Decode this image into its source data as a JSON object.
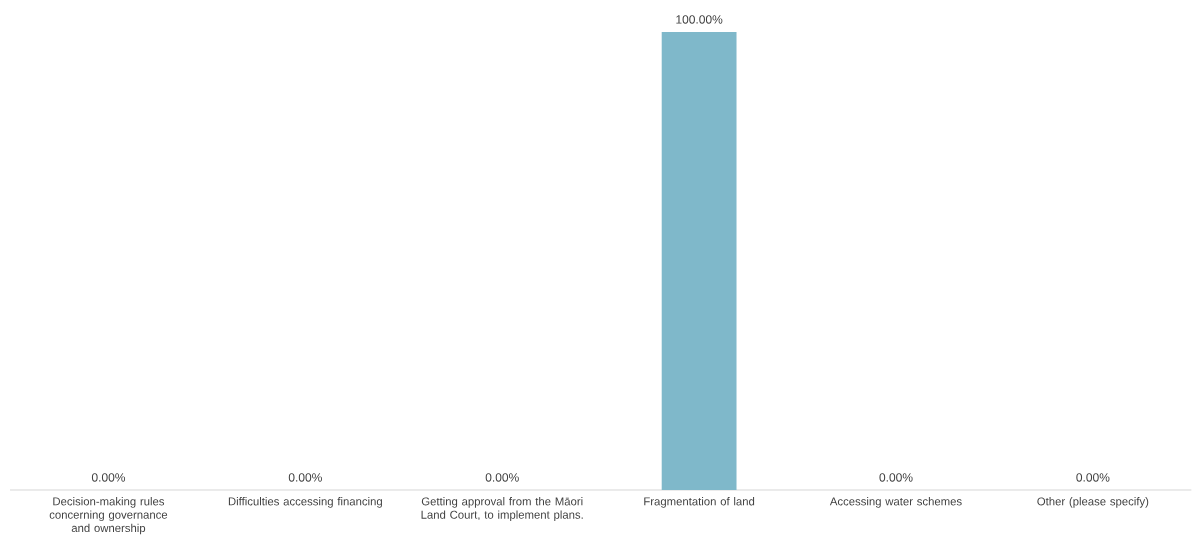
{
  "chart_data": {
    "type": "bar",
    "categories": [
      "Decision-making rules concerning governance and ownership",
      "Difficulties accessing financing",
      "Getting approval from the Māori Land Court, to implement plans.",
      "Fragmentation of land",
      "Accessing water schemes",
      "Other (please specify)"
    ],
    "values": [
      0,
      0,
      0,
      100,
      0,
      0
    ],
    "value_labels": [
      "0.00%",
      "0.00%",
      "0.00%",
      "100.00%",
      "0.00%",
      "0.00%"
    ],
    "color": "#7fb8ca"
  }
}
